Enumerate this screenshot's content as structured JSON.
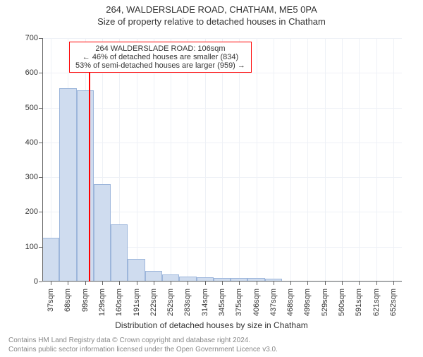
{
  "title": "264, WALDERSLADE ROAD, CHATHAM, ME5 0PA",
  "subtitle": "Size of property relative to detached houses in Chatham",
  "ylabel": "Number of detached properties",
  "xlabel": "Distribution of detached houses by size in Chatham",
  "chart": {
    "type": "bar",
    "ylim": [
      0,
      700
    ],
    "ytick_step": 100,
    "yticks": [
      0,
      100,
      200,
      300,
      400,
      500,
      600,
      700
    ],
    "x_categories": [
      "37sqm",
      "68sqm",
      "99sqm",
      "129sqm",
      "160sqm",
      "191sqm",
      "222sqm",
      "252sqm",
      "283sqm",
      "314sqm",
      "345sqm",
      "375sqm",
      "406sqm",
      "437sqm",
      "468sqm",
      "499sqm",
      "529sqm",
      "560sqm",
      "591sqm",
      "621sqm",
      "652sqm"
    ],
    "values": [
      125,
      555,
      550,
      280,
      165,
      65,
      30,
      20,
      15,
      12,
      10,
      10,
      10,
      8,
      0,
      0,
      0,
      0,
      0,
      0,
      0
    ],
    "bar_fill": "#cfdcef",
    "bar_stroke": "#9db6db",
    "background_color": "#ffffff",
    "grid_color": "#eef1f6",
    "axis_color": "#666666",
    "bar_width_rel": 1.0,
    "label_fontsize": 11,
    "marker": {
      "x_index_after": 2,
      "frac_between": 0.25,
      "color": "#ff0000",
      "height_rel": 0.86
    }
  },
  "annotation": {
    "lines": [
      "264 WALDERSLADE ROAD: 106sqm",
      "← 46% of detached houses are smaller (834)",
      "53% of semi-detached houses are larger (959) →"
    ],
    "border_color": "#ff0000"
  },
  "footer": {
    "line1": "Contains HM Land Registry data © Crown copyright and database right 2024.",
    "line2": "Contains public sector information licensed under the Open Government Licence v3.0."
  }
}
